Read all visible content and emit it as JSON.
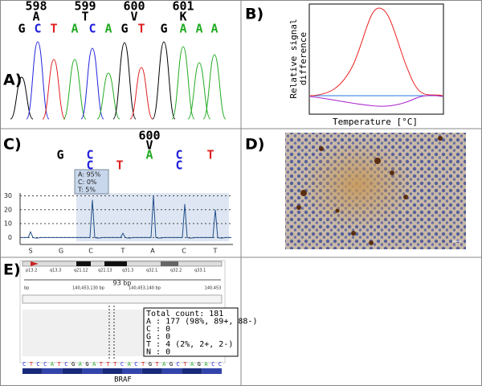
{
  "panels": {
    "a": {
      "label": "A)",
      "codons": [
        {
          "number": "598",
          "amino_acid": "A"
        },
        {
          "number": "599",
          "amino_acid": "T"
        },
        {
          "number": "600",
          "amino_acid": "V"
        },
        {
          "number": "601",
          "amino_acid": "K"
        }
      ],
      "bases": [
        "G",
        "C",
        "T",
        "A",
        "C",
        "A",
        "G",
        "T",
        "G",
        "A",
        "A",
        "A"
      ]
    },
    "b": {
      "label": "B)",
      "y_label": [
        "Relative signal",
        "difference"
      ],
      "x_label": "Temperature [°C]"
    },
    "c": {
      "label": "C)",
      "codon": "600",
      "amino_acid": "V",
      "calls": [
        {
          "primary": "G"
        },
        {
          "primary": "C",
          "secondary": "C"
        },
        {
          "secondary": "T"
        },
        {
          "primary": "A"
        },
        {
          "primary": "C",
          "secondary": "C"
        },
        {
          "primary": "T"
        }
      ],
      "popup": [
        "A: 95%",
        "C: 0%",
        "T: 5%"
      ],
      "ylim": [
        -5,
        32
      ],
      "yticks": [
        0,
        10,
        20,
        30
      ],
      "x_labels": [
        "S",
        "G",
        "C",
        "T",
        "A",
        "C",
        "T"
      ]
    },
    "d": {
      "label": "D)"
    },
    "e": {
      "label": "E)",
      "bands": [
        "p13.2",
        "q13.3",
        "q21.12",
        "q21.13",
        "q31.3",
        "q32.1",
        "q32.2",
        "q33.1"
      ],
      "span": "93 bp",
      "ruler": [
        "bp",
        "140,453,130 bp",
        "140,453,140 bp",
        "140,453"
      ],
      "popup": [
        "Total count: 181",
        "A : 177 (98%, 89+, 88-)",
        "C : 0",
        "G : 0",
        "T : 4 (2%, 2+, 2-)",
        "N : 0"
      ],
      "sequence": "CTCCATCGAGATTTCACTGTAGCTAGACC",
      "gene": "BRAF"
    }
  }
}
